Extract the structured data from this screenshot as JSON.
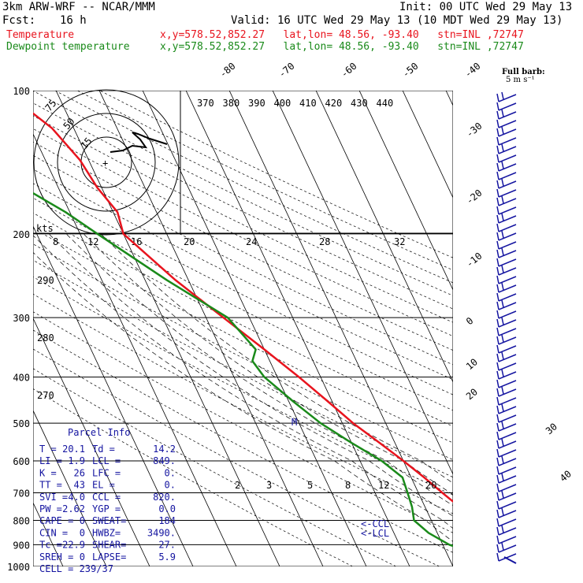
{
  "header": {
    "model": "3km ARW-WRF -- NCAR/MMM",
    "init": "Init: 00 UTC Wed 29 May 13",
    "fcst_label": "Fcst:",
    "fcst_value": "16 h",
    "valid": "Valid: 16 UTC Wed 29 May 13 (10 MDT Wed 29 May 13)",
    "temp_label": "Temperature",
    "temp_loc": "x,y=578.52,852.27   lat,lon= 48.56, -93.40   stn=INL ,72747",
    "dew_label": "Dewpoint temperature",
    "dew_loc": "x,y=578.52,852.27   lat,lon= 48.56, -93.40   stn=INL ,72747",
    "barb_title": "Full barb:",
    "barb_units": "5 m s⁻¹"
  },
  "colors": {
    "temperature": "#e8141e",
    "dewpoint": "#1a8a1a",
    "parcel": "#1414a0",
    "grid": "#000000"
  },
  "chart_data": {
    "type": "line",
    "subtype": "skew-t log-p",
    "pressure_levels": [
      100,
      200,
      300,
      400,
      500,
      600,
      700,
      800,
      900,
      1000
    ],
    "isotherm_labels": [
      -80,
      -70,
      -60,
      -50,
      -40,
      -30,
      -20,
      -10,
      0,
      10,
      20,
      30,
      40
    ],
    "theta_labels": [
      370,
      380,
      390,
      400,
      410,
      420,
      430,
      440
    ],
    "theta_left_labels": [
      290,
      280,
      270
    ],
    "mixing_ratio_labels": [
      "2",
      "3",
      "5",
      "8",
      "12",
      "20"
    ],
    "hodograph": {
      "units": "kts",
      "ring_labels": [
        "15",
        "50",
        "75"
      ],
      "axis_labels": [
        "8",
        "12",
        "16",
        "20",
        "24",
        "28",
        "32"
      ]
    },
    "series": [
      {
        "name": "Temperature",
        "points": [
          [
            1000,
            22.5
          ],
          [
            975,
            20.0
          ],
          [
            950,
            19.0
          ],
          [
            925,
            17.0
          ],
          [
            900,
            15.0
          ],
          [
            850,
            13.0
          ],
          [
            800,
            10.5
          ],
          [
            750,
            8.0
          ],
          [
            700,
            5.5
          ],
          [
            650,
            3.0
          ],
          [
            600,
            0.0
          ],
          [
            550,
            -3.5
          ],
          [
            500,
            -7.5
          ],
          [
            450,
            -11.0
          ],
          [
            400,
            -15.0
          ],
          [
            350,
            -20.0
          ],
          [
            300,
            -26.0
          ],
          [
            250,
            -33.0
          ],
          [
            200,
            -40.0
          ],
          [
            180,
            -39.0
          ],
          [
            160,
            -41.0
          ],
          [
            140,
            -42.0
          ],
          [
            120,
            -45.0
          ],
          [
            100,
            -52.0
          ]
        ]
      },
      {
        "name": "Dewpoint temperature",
        "points": [
          [
            1000,
            10.0
          ],
          [
            975,
            9.5
          ],
          [
            950,
            5.0
          ],
          [
            925,
            4.5
          ],
          [
            900,
            1.5
          ],
          [
            850,
            -2.0
          ],
          [
            800,
            -4.0
          ],
          [
            750,
            -3.0
          ],
          [
            700,
            -2.5
          ],
          [
            650,
            -2.0
          ],
          [
            600,
            -5.0
          ],
          [
            550,
            -10.0
          ],
          [
            500,
            -15.0
          ],
          [
            450,
            -19.0
          ],
          [
            400,
            -23.0
          ],
          [
            370,
            -24.0
          ],
          [
            350,
            -22.0
          ],
          [
            300,
            -25.0
          ],
          [
            250,
            -35.0
          ],
          [
            200,
            -46.0
          ],
          [
            180,
            -51.0
          ],
          [
            160,
            -58.0
          ],
          [
            140,
            -68.0
          ],
          [
            120,
            -77.0
          ],
          [
            100,
            -85.0
          ]
        ]
      }
    ],
    "markers": [
      "CCL",
      "LCL",
      "M"
    ]
  },
  "parcel_info": {
    "title": "Parcel Info",
    "rows": [
      [
        "T  =",
        "20.1",
        "Td =",
        "14.2"
      ],
      [
        "LI =",
        "1.9",
        "LCL =",
        "849."
      ],
      [
        "K  =",
        "26",
        "LFC =",
        "0."
      ],
      [
        "TT =",
        "43",
        "EL =",
        "0."
      ],
      [
        "SVI =",
        "4.0",
        "CCL =",
        "820."
      ],
      [
        "PW =",
        "2.62",
        "YGP =",
        "0.0"
      ],
      [
        "CAPE =",
        "0",
        "SWEAT=",
        "184"
      ],
      [
        "CIN =",
        "0",
        "HWBZ=",
        "3490."
      ],
      [
        "Tc =",
        "22.9",
        "SHEAR=",
        "27."
      ],
      [
        "SREH =",
        "0",
        "LAPSE=",
        "5.9"
      ]
    ],
    "cell": "CELL = 239/37"
  },
  "pressure_axis_labels": [
    "100",
    "200",
    "300",
    "400",
    "500",
    "600",
    "700",
    "800",
    "900",
    "1000"
  ]
}
